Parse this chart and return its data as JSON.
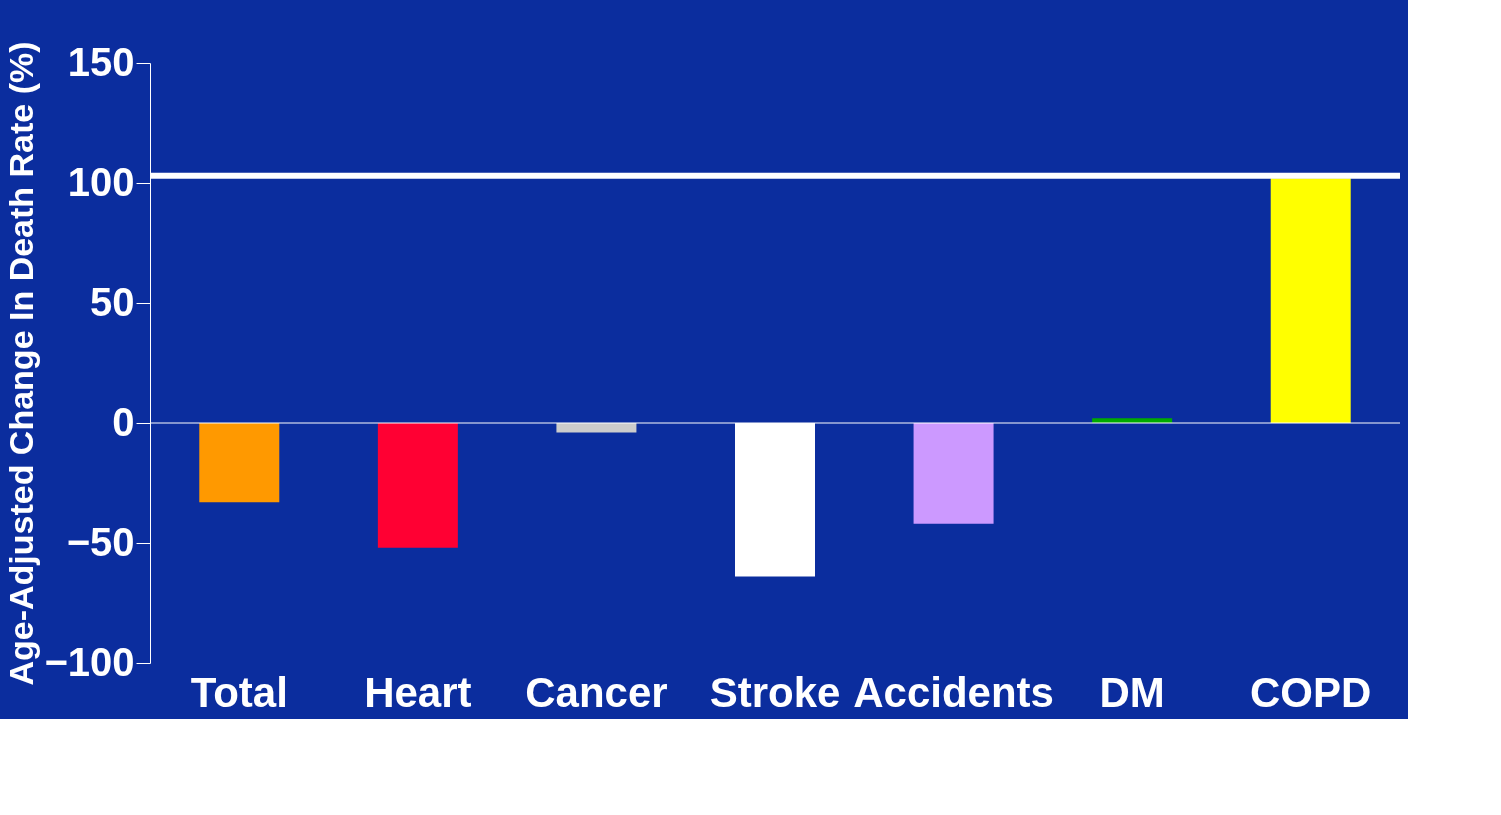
{
  "chart_data": {
    "type": "bar",
    "ylabel": "Age-Adjusted Change In Death Rate (%)",
    "categories": [
      "Total",
      "Heart",
      "Cancer",
      "Stroke",
      "Accidents",
      "DM",
      "COPD"
    ],
    "values": [
      -33,
      -52,
      -4,
      -64,
      -42,
      2,
      102
    ],
    "colors": [
      "#ff9900",
      "#ff0033",
      "#cccccc",
      "#ffffff",
      "#cc99ff",
      "#00aa00",
      "#ffff00"
    ],
    "ylim": [
      -100,
      150
    ],
    "yticks": [
      -100,
      -50,
      0,
      50,
      100,
      150
    ],
    "ref_lines": [
      {
        "axis": "y",
        "value": 103,
        "color": "#ffffff"
      },
      {
        "axis": "y",
        "value": 0,
        "color": "#ffffff",
        "line_style": "solid"
      }
    ],
    "grid": false,
    "legend": false
  }
}
